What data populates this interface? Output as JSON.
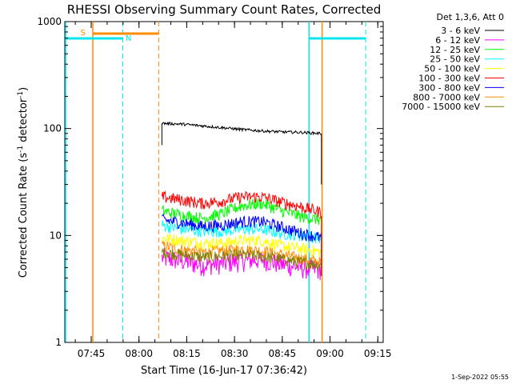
{
  "chart_data": {
    "type": "line",
    "title": "RHESSI Observing Summary Count Rates, Corrected",
    "xlabel": "Start Time (16-Jun-17 07:36:42)",
    "ylabel_main": "Corrected Count Rate (s",
    "ylabel_sup1": "-1",
    "ylabel_mid": " detector",
    "ylabel_sup2": "-1",
    "ylabel_end": ")",
    "yscale": "log",
    "ylim": [
      1,
      1000
    ],
    "xlim_minutes": [
      0,
      100
    ],
    "x_ticks": [
      {
        "label": "07:45",
        "min": 8.3
      },
      {
        "label": "08:00",
        "min": 23.3
      },
      {
        "label": "08:15",
        "min": 38.3
      },
      {
        "label": "08:30",
        "min": 53.3
      },
      {
        "label": "08:45",
        "min": 68.3
      },
      {
        "label": "09:00",
        "min": 83.3
      },
      {
        "label": "09:15",
        "min": 98.3
      }
    ],
    "y_ticks": [
      {
        "label": "1",
        "value": 1
      },
      {
        "label": "10",
        "value": 10
      },
      {
        "label": "100",
        "value": 100
      },
      {
        "label": "1000",
        "value": 1000
      }
    ],
    "data_start_min": 30.5,
    "data_end_min": 80.6,
    "legend_header": "Det 1,3,6, Att 0",
    "series": [
      {
        "name": "3 - 6 keV",
        "color": "#000000",
        "shape": [
          112,
          110,
          106,
          102,
          98,
          95,
          93,
          92,
          90
        ]
      },
      {
        "name": "6 - 12 keV",
        "color": "#ff00ff",
        "shape": [
          6.2,
          5.8,
          5.3,
          5.5,
          5.8,
          6.0,
          5.4,
          5.0,
          4.8
        ]
      },
      {
        "name": "12 - 25 keV",
        "color": "#00ff00",
        "shape": [
          17,
          15.5,
          14.5,
          16,
          19,
          20,
          17,
          15,
          14
        ]
      },
      {
        "name": "25 - 50 keV",
        "color": "#00ffff",
        "shape": [
          12.5,
          11.5,
          11,
          11,
          11.5,
          11.5,
          10.5,
          10,
          9.5
        ]
      },
      {
        "name": "50 - 100 keV",
        "color": "#ffff00",
        "shape": [
          9.5,
          9,
          8.5,
          8.5,
          9,
          9,
          8,
          7.5,
          7
        ]
      },
      {
        "name": "100 - 300 keV",
        "color": "#ff0000",
        "shape": [
          23,
          21.5,
          20,
          21,
          23,
          23,
          20.5,
          18.5,
          16.5
        ]
      },
      {
        "name": "300 - 800 keV",
        "color": "#0000ff",
        "shape": [
          14,
          13.2,
          12.2,
          12.5,
          13.5,
          13.5,
          12,
          10.5,
          9.5
        ]
      },
      {
        "name": "800 - 7000 keV",
        "color": "#ff8c00",
        "shape": [
          8,
          7.4,
          7,
          7.2,
          7.5,
          7.2,
          6.6,
          6.1,
          5.6
        ]
      },
      {
        "name": "7000 - 15000 keV",
        "color": "#808000",
        "shape": [
          7,
          6.6,
          6.3,
          6.4,
          6.6,
          6.4,
          6.0,
          5.6,
          5.3
        ]
      }
    ],
    "markers": [
      {
        "label": "S",
        "color": "#ff8c00"
      },
      {
        "label": "N",
        "color": "#00e5ee"
      }
    ],
    "timestamp": "1-Sep-2022 05:55"
  }
}
